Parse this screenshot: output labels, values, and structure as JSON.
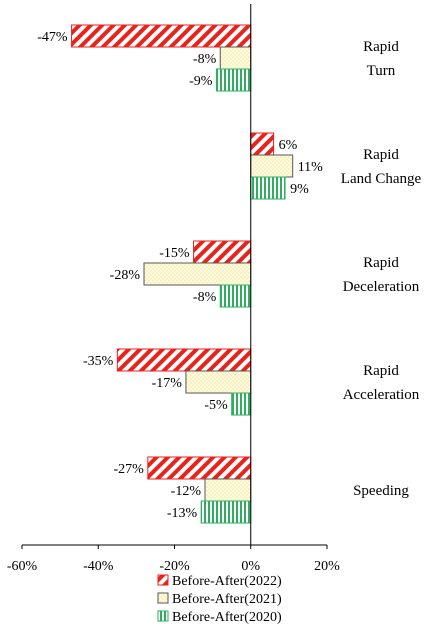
{
  "chart_data": {
    "type": "bar",
    "orientation": "horizontal",
    "categories": [
      [
        "Rapid",
        "Turn"
      ],
      [
        "Rapid",
        "Land Change"
      ],
      [
        "Rapid",
        "Deceleration"
      ],
      [
        "Rapid",
        "Acceleration"
      ],
      [
        "Speeding"
      ]
    ],
    "series": [
      {
        "name": "Before-After(2022)",
        "values": [
          -47,
          6,
          -15,
          -35,
          -27
        ],
        "color": "#e8231c",
        "pattern": "diagonal-hatch"
      },
      {
        "name": "Before-After(2021)",
        "values": [
          -8,
          11,
          -28,
          -17,
          -12
        ],
        "color": "#fffbd8",
        "pattern": "dotted"
      },
      {
        "name": "Before-After(2020)",
        "values": [
          -9,
          9,
          -8,
          -5,
          -13
        ],
        "color": "#2eae5e",
        "pattern": "vertical-stripes"
      }
    ],
    "value_labels": [
      [
        "-47%",
        "6%",
        "-15%",
        "-35%",
        "-27%"
      ],
      [
        "-8%",
        "11%",
        "-28%",
        "-17%",
        "-12%"
      ],
      [
        "-9%",
        "9%",
        "-8%",
        "-5%",
        "-13%"
      ]
    ],
    "xlim": [
      -60,
      20
    ],
    "x_ticks": [
      "-60%",
      "-40%",
      "-20%",
      "0%",
      "20%"
    ],
    "x_tick_values": [
      -60,
      -40,
      -20,
      0,
      20
    ],
    "title": "",
    "xlabel": "",
    "ylabel": "",
    "grid": false,
    "legend_position": "bottom"
  }
}
